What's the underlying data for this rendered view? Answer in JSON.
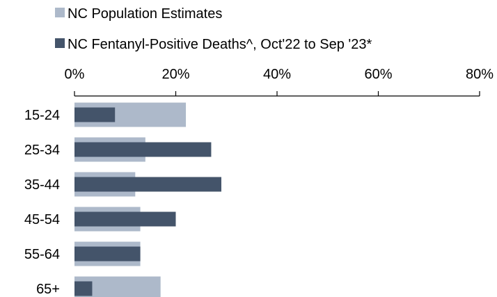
{
  "chart_data": {
    "type": "bar",
    "orientation": "horizontal",
    "categories": [
      "15-24",
      "25-34",
      "35-44",
      "45-54",
      "55-64",
      "65+"
    ],
    "series": [
      {
        "name": "NC Population Estimates",
        "values": [
          22,
          14,
          12,
          13,
          13,
          17
        ],
        "color": "#adb9ca"
      },
      {
        "name": "NC Fentanyl-Positive Deaths^, Oct'22 to Sep '23*",
        "values": [
          8,
          27,
          29,
          20,
          13,
          3.5
        ],
        "color": "#44546a"
      }
    ],
    "x_ticks": [
      "0%",
      "20%",
      "40%",
      "60%",
      "80%"
    ],
    "xlim": [
      0,
      80
    ],
    "axis_position": "top",
    "legend_position": "top-left",
    "grid": false,
    "title": "",
    "xlabel": "",
    "ylabel": ""
  }
}
